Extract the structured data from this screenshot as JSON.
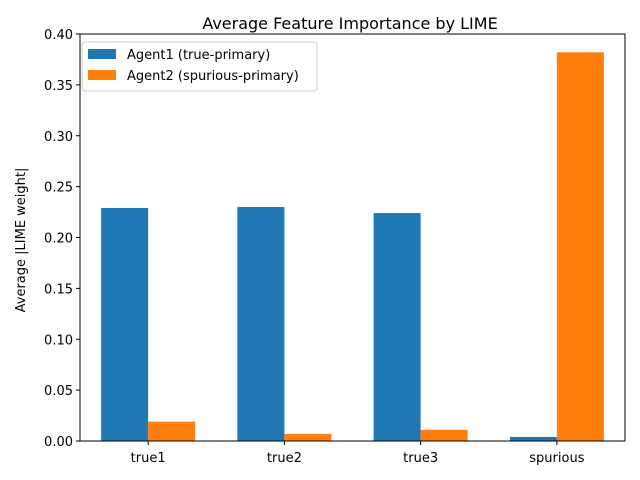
{
  "chart_data": {
    "type": "bar",
    "title": "Average Feature Importance by LIME",
    "xlabel": "",
    "ylabel": "Average |LIME weight|",
    "categories": [
      "true1",
      "true2",
      "true3",
      "spurious"
    ],
    "series": [
      {
        "name": "Agent1 (true-primary)",
        "color": "#1f77b4",
        "values": [
          0.229,
          0.23,
          0.224,
          0.004
        ]
      },
      {
        "name": "Agent2 (spurious-primary)",
        "color": "#ff7f0e",
        "values": [
          0.019,
          0.007,
          0.011,
          0.382
        ]
      }
    ],
    "ylim": [
      0,
      0.4
    ],
    "yticks": [
      "0.00",
      "0.05",
      "0.10",
      "0.15",
      "0.20",
      "0.25",
      "0.30",
      "0.35",
      "0.40"
    ],
    "grid": false,
    "legend_position": "top-left"
  }
}
